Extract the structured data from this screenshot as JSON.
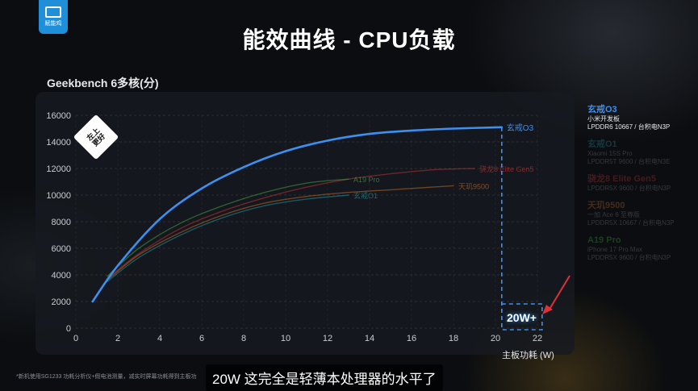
{
  "header": {
    "logo_text": "赋能鸡",
    "title": "能效曲线 - CPU负载"
  },
  "badge_text": "左上更好",
  "callout_text": "20W+",
  "subtitle": "20W 这完全是轻薄本处理器的水平了",
  "footnote": "*新机使用SG1233 功耗分析仪+假电池测量，减实时屏幕功耗得到主板功",
  "legend": [
    {
      "name": "玄戒O3",
      "sub1": "小米开发板",
      "sub2": "LPDDR6 10667 / 台积电N3P",
      "color": "#3d8ff0",
      "active": true
    },
    {
      "name": "玄戒O1",
      "sub1": "Xiaomi 15S Pro",
      "sub2": "LPDDR5T 9600 / 台积电N3E",
      "color": "#22a9b8",
      "active": false
    },
    {
      "name": "骁龙8 Elite Gen5",
      "sub1": "",
      "sub2": "LPDDR5X 9600 / 台积电N3P",
      "color": "#d93a3a",
      "active": false
    },
    {
      "name": "天玑9500",
      "sub1": "一加 Ace 6 至尊版",
      "sub2": "LPDDR5X 10667 / 台积电N3P",
      "color": "#e07a2a",
      "active": false
    },
    {
      "name": "A19 Pro",
      "sub1": "iPhone 17 Pro Max",
      "sub2": "LPDDR5X 9600 / 台积电N3P",
      "color": "#4bb84b",
      "active": false
    }
  ],
  "chart_data": {
    "type": "line",
    "title": "能效曲线 - CPU负载",
    "ylabel": "Geekbench 6多核(分)",
    "xlabel": "主板功耗 (W)",
    "xlim": [
      0,
      22
    ],
    "ylim": [
      0,
      16000
    ],
    "xticks": [
      0,
      2,
      4,
      6,
      8,
      10,
      12,
      14,
      16,
      18,
      20,
      22
    ],
    "yticks": [
      0,
      2000,
      4000,
      6000,
      8000,
      10000,
      12000,
      14000,
      16000
    ],
    "grid": true,
    "legend_position": "right",
    "series": [
      {
        "name": "玄戒O3",
        "color": "#3d8ff0",
        "highlight": true,
        "x": [
          0.8,
          2,
          4,
          6,
          8,
          10,
          12,
          14,
          16,
          18,
          20.3
        ],
        "y": [
          2000,
          4700,
          8200,
          10500,
          12100,
          13300,
          14100,
          14600,
          14850,
          15000,
          15100
        ]
      },
      {
        "name": "骁龙8 Elite Gen5",
        "color": "#d93a3a",
        "highlight": false,
        "x": [
          1.5,
          3,
          5,
          7,
          9,
          11,
          13,
          15,
          17,
          19
        ],
        "y": [
          3700,
          5600,
          7500,
          8800,
          9800,
          10600,
          11200,
          11600,
          11900,
          12000
        ]
      },
      {
        "name": "A19 Pro",
        "color": "#4bb84b",
        "highlight": false,
        "x": [
          1.5,
          3,
          5,
          7,
          9,
          11,
          13
        ],
        "y": [
          3900,
          6000,
          7900,
          9200,
          10200,
          10900,
          11200
        ]
      },
      {
        "name": "天玑9500",
        "color": "#e07a2a",
        "highlight": false,
        "x": [
          1.5,
          3,
          5,
          7,
          9,
          11,
          13,
          15,
          17,
          18
        ],
        "y": [
          3600,
          5500,
          7200,
          8500,
          9400,
          9900,
          10200,
          10400,
          10600,
          10700
        ]
      },
      {
        "name": "玄戒O1",
        "color": "#22a9b8",
        "highlight": false,
        "x": [
          1.5,
          3,
          5,
          7,
          9,
          11,
          13
        ],
        "y": [
          3500,
          5300,
          7000,
          8300,
          9200,
          9700,
          10000
        ]
      }
    ],
    "end_labels": [
      {
        "series": "玄戒O3",
        "text": "玄戒O3"
      },
      {
        "series": "骁龙8 Elite Gen5",
        "text": "骁龙8 Elite Gen5"
      },
      {
        "series": "A19 Pro",
        "text": "A19 Pro"
      },
      {
        "series": "天玑9500",
        "text": "天玑9500"
      },
      {
        "series": "玄戒O1",
        "text": "玄戒O1"
      }
    ],
    "marker_x": 20.3
  }
}
